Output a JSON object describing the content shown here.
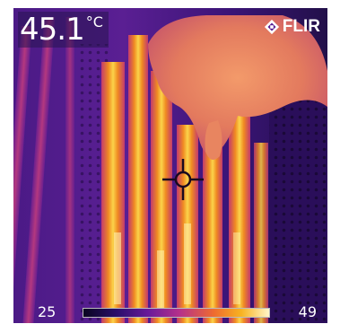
{
  "readout": {
    "temperature": "45.1",
    "unit": "°C"
  },
  "brand": {
    "name": "FLIR",
    "icon": "flir-logo-icon"
  },
  "scale": {
    "min": "25",
    "max": "49"
  },
  "palette": {
    "cold": "#2a0c5d",
    "mid": "#b6318a",
    "warm": "#ee6a30",
    "hot": "#f7b321",
    "hottest": "#fff6c8"
  },
  "crosshair": {
    "icon": "crosshair-icon"
  }
}
